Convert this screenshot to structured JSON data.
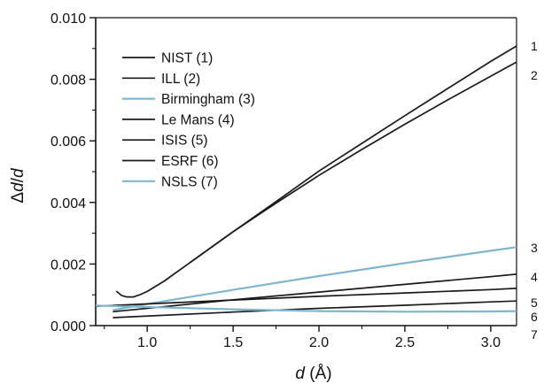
{
  "chart_data": {
    "type": "line",
    "title": "",
    "xlabel": {
      "var": "d",
      "unit": " (Å)"
    },
    "ylabel": {
      "pre": "Δ",
      "var1": "d",
      "slash": "/",
      "var2": "d"
    },
    "xlim": [
      0.7,
      3.15
    ],
    "ylim": [
      0.0,
      0.01
    ],
    "xticks": [
      1.0,
      1.5,
      2.0,
      2.5,
      3.0
    ],
    "xtick_labels": [
      "1.0",
      "1.5",
      "2.0",
      "2.5",
      "3.0"
    ],
    "yticks": [
      0.0,
      0.002,
      0.004,
      0.006,
      0.008,
      0.01
    ],
    "ytick_labels": [
      "0.000",
      "0.002",
      "0.004",
      "0.006",
      "0.008",
      "0.010"
    ],
    "grid": false,
    "legend": "top-left",
    "colors": {
      "dark": "#1a1a1a",
      "blue": "#7fb6cc"
    },
    "series": [
      {
        "name": "NIST (1)",
        "end_label": "1",
        "color": "dark",
        "x": [
          0.82,
          0.85,
          0.88,
          0.92,
          0.96,
          1.0,
          1.1,
          1.25,
          1.5,
          1.75,
          2.0,
          2.25,
          2.5,
          2.75,
          3.0,
          3.15
        ],
        "y": [
          0.00112,
          0.00098,
          0.00093,
          0.00093,
          0.00101,
          0.00111,
          0.00145,
          0.00205,
          0.00305,
          0.00403,
          0.00502,
          0.00592,
          0.00682,
          0.0077,
          0.00858,
          0.00908
        ]
      },
      {
        "name": "ILL (2)",
        "end_label": "2",
        "color": "dark",
        "x": [
          1.25,
          1.5,
          1.75,
          2.0,
          2.25,
          2.5,
          2.75,
          3.0,
          3.15
        ],
        "y": [
          0.00205,
          0.00305,
          0.00398,
          0.00488,
          0.00572,
          0.00654,
          0.00733,
          0.0081,
          0.00856
        ]
      },
      {
        "name": "Birmingham (3)",
        "end_label": "3",
        "color": "blue",
        "x": [
          0.8,
          1.0,
          1.5,
          2.0,
          2.5,
          3.0,
          3.15
        ],
        "y": [
          0.0005,
          0.0007,
          0.00116,
          0.00161,
          0.00203,
          0.00243,
          0.00255
        ]
      },
      {
        "name": "Le Mans (4)",
        "end_label": "4",
        "color": "dark",
        "x": [
          0.8,
          1.5,
          2.0,
          2.5,
          3.0,
          3.15
        ],
        "y": [
          0.00045,
          0.00084,
          0.00109,
          0.00134,
          0.00159,
          0.00167
        ]
      },
      {
        "name": "ISIS (5)",
        "end_label": "5",
        "color": "dark",
        "x": [
          0.7,
          1.5,
          2.0,
          2.5,
          3.0,
          3.15
        ],
        "y": [
          0.00063,
          0.00083,
          0.00095,
          0.00106,
          0.00117,
          0.00121
        ]
      },
      {
        "name": "ESRF (6)",
        "end_label": "6",
        "color": "dark",
        "x": [
          0.8,
          1.5,
          2.0,
          2.5,
          3.0,
          3.15
        ],
        "y": [
          0.00026,
          0.00044,
          0.00056,
          0.00066,
          0.00077,
          0.0008
        ]
      },
      {
        "name": "NSLS (7)",
        "end_label": "7",
        "color": "blue",
        "x": [
          0.7,
          1.5,
          2.0,
          2.5,
          3.0,
          3.15
        ],
        "y": [
          0.00065,
          0.00053,
          0.00047,
          0.00045,
          0.00046,
          0.00047
        ]
      }
    ]
  }
}
